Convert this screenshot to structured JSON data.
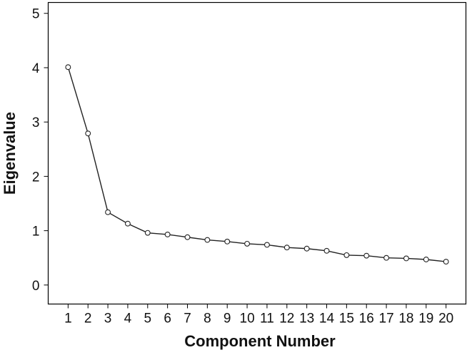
{
  "chart_data": {
    "type": "line",
    "title": "",
    "xlabel": "Component Number",
    "ylabel": "Eigenvalue",
    "x": [
      1,
      2,
      3,
      4,
      5,
      6,
      7,
      8,
      9,
      10,
      11,
      12,
      13,
      14,
      15,
      16,
      17,
      18,
      19,
      20
    ],
    "x_tick_labels": [
      "1",
      "2",
      "3",
      "4",
      "5",
      "6",
      "7",
      "8",
      "9",
      "10",
      "11",
      "12",
      "13",
      "14",
      "15",
      "16",
      "17",
      "18",
      "19",
      "20"
    ],
    "series": [
      {
        "values": [
          4.01,
          2.79,
          1.34,
          1.13,
          0.96,
          0.93,
          0.88,
          0.83,
          0.8,
          0.76,
          0.74,
          0.69,
          0.67,
          0.63,
          0.55,
          0.54,
          0.5,
          0.49,
          0.47,
          0.43
        ]
      }
    ],
    "y_ticks": [
      0,
      1,
      2,
      3,
      4,
      5
    ],
    "y_tick_labels": [
      "0",
      "1",
      "2",
      "3",
      "4",
      "5"
    ],
    "ylim": [
      -0.35,
      5.2
    ],
    "xlim": [
      0,
      21
    ],
    "grid": false,
    "marker": "open-circle"
  }
}
